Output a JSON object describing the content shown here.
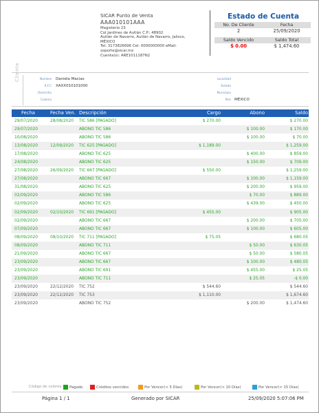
{
  "company": {
    "name": "SICAR Punto de Venta",
    "rfc": "AAA010101AAA",
    "address_lines": [
      "Magisterio 23",
      "Col.Jardines de Autlán C.P.: 48902",
      "Autlán de Navarro, Autlán de Navarro, Jalisco,",
      "MÉXICO",
      "Tel: 3173826696 Cel: 0000000000 eMail:",
      "soporte@sicar.mx",
      "Cuenta(s): ARE1011187N2"
    ]
  },
  "statement": {
    "title": "Estado de Cuenta",
    "client_no_label": "No. De Cliente",
    "client_no": "2",
    "date_label": "Fecha",
    "date": "25/09/2020",
    "due_label": "Saldo Vencido",
    "due": "$ 0.00",
    "total_label": "Saldo Total",
    "total": "$ 1,474.60"
  },
  "client": {
    "section": "Cliente",
    "name_label": "Nombre",
    "name": "Daniela Macias",
    "rfc_label": "R.F.C",
    "rfc": "XAXX010101000",
    "address_label": "Domicilio",
    "colony_label": "Colonia",
    "locality_label": "Localidad",
    "state_label": "Estado",
    "municipality_label": "Municipio",
    "country_label": "País",
    "country": "MÉXICO"
  },
  "table": {
    "headers": {
      "date": "Fecha",
      "due_date": "Fecha Ven.",
      "description": "Descripción",
      "charge": "Cargo",
      "payment": "Abono",
      "balance": "Saldo"
    },
    "rows": [
      {
        "date": "29/07/2020",
        "due": "28/08/2020",
        "desc": "TIC 586 [PAGADO]",
        "charge": "$ 270.00",
        "payment": "",
        "balance": "$ 270.00",
        "status": "green"
      },
      {
        "date": "29/07/2020",
        "due": "",
        "desc": "ABONO TIC 586",
        "charge": "",
        "payment": "$ 100.00",
        "balance": "$ 170.00",
        "status": "green"
      },
      {
        "date": "10/08/2020",
        "due": "",
        "desc": "ABONO TIC 586",
        "charge": "",
        "payment": "$ 100.00",
        "balance": "$ 70.00",
        "status": "green"
      },
      {
        "date": "13/08/2020",
        "due": "12/09/2020",
        "desc": "TIC 625 [PAGADO]",
        "charge": "$ 1,189.00",
        "payment": "",
        "balance": "$ 1,259.00",
        "status": "green"
      },
      {
        "date": "17/08/2020",
        "due": "",
        "desc": "ABONO TIC 625",
        "charge": "",
        "payment": "$ 400.00",
        "balance": "$ 859.00",
        "status": "green"
      },
      {
        "date": "24/08/2020",
        "due": "",
        "desc": "ABONO TIC 625",
        "charge": "",
        "payment": "$ 150.00",
        "balance": "$ 709.00",
        "status": "green"
      },
      {
        "date": "27/08/2020",
        "due": "26/09/2020",
        "desc": "TIC 667 [PAGADO]",
        "charge": "$ 550.00",
        "payment": "",
        "balance": "$ 1,259.00",
        "status": "green"
      },
      {
        "date": "27/08/2020",
        "due": "",
        "desc": "ABONO TIC 667",
        "charge": "",
        "payment": "$ 100.00",
        "balance": "$ 1,159.00",
        "status": "green"
      },
      {
        "date": "31/08/2020",
        "due": "",
        "desc": "ABONO TIC 625",
        "charge": "",
        "payment": "$ 200.00",
        "balance": "$ 959.00",
        "status": "green"
      },
      {
        "date": "02/09/2020",
        "due": "",
        "desc": "ABONO TIC 586",
        "charge": "",
        "payment": "$ 70.00",
        "balance": "$ 889.00",
        "status": "green"
      },
      {
        "date": "02/09/2020",
        "due": "",
        "desc": "ABONO TIC 625",
        "charge": "",
        "payment": "$ 439.00",
        "balance": "$ 450.00",
        "status": "green"
      },
      {
        "date": "02/09/2020",
        "due": "02/10/2020",
        "desc": "TIC 691 [PAGADO]",
        "charge": "$ 455.00",
        "payment": "",
        "balance": "$ 905.00",
        "status": "green"
      },
      {
        "date": "02/09/2020",
        "due": "",
        "desc": "ABONO TIC 667",
        "charge": "",
        "payment": "$ 200.00",
        "balance": "$ 705.00",
        "status": "green"
      },
      {
        "date": "07/09/2020",
        "due": "",
        "desc": "ABONO TIC 667",
        "charge": "",
        "payment": "$ 100.00",
        "balance": "$ 605.00",
        "status": "green"
      },
      {
        "date": "08/09/2020",
        "due": "08/10/2020",
        "desc": "TIC 711 [PAGADO]",
        "charge": "$ 75.05",
        "payment": "",
        "balance": "$ 680.05",
        "status": "green"
      },
      {
        "date": "08/09/2020",
        "due": "",
        "desc": "ABONO TIC 711",
        "charge": "",
        "payment": "$ 50.00",
        "balance": "$ 630.05",
        "status": "green"
      },
      {
        "date": "21/09/2020",
        "due": "",
        "desc": "ABONO TIC 667",
        "charge": "",
        "payment": "$ 50.00",
        "balance": "$ 580.05",
        "status": "green"
      },
      {
        "date": "23/09/2020",
        "due": "",
        "desc": "ABONO TIC 667",
        "charge": "",
        "payment": "$ 100.00",
        "balance": "$ 480.05",
        "status": "green"
      },
      {
        "date": "23/09/2020",
        "due": "",
        "desc": "ABONO TIC 691",
        "charge": "",
        "payment": "$ 455.00",
        "balance": "$ 25.05",
        "status": "green"
      },
      {
        "date": "23/09/2020",
        "due": "",
        "desc": "ABONO TIC 711",
        "charge": "",
        "payment": "$ 25.05",
        "balance": "-$ 0.00",
        "status": "green"
      },
      {
        "date": "23/09/2020",
        "due": "22/12/2020",
        "desc": "TIC 752",
        "charge": "$ 544.60",
        "payment": "",
        "balance": "$ 544.60",
        "status": "gray"
      },
      {
        "date": "23/09/2020",
        "due": "22/12/2020",
        "desc": "TIC 753",
        "charge": "$ 1,110.00",
        "payment": "",
        "balance": "$ 1,674.60",
        "status": "gray"
      },
      {
        "date": "23/09/2020",
        "due": "",
        "desc": "ABONO TIC 752",
        "charge": "",
        "payment": "$ 200.00",
        "balance": "$ 1,474.60",
        "status": "gray"
      }
    ]
  },
  "legend": {
    "title": "Código de colores:",
    "items": [
      {
        "label": "Pagado",
        "color": "#1ea31e"
      },
      {
        "label": "Créditos vencidos",
        "color": "#e02020"
      },
      {
        "label": "Por Vencer(< 5 Días)",
        "color": "#f39a1e"
      },
      {
        "label": "Por Vencer(< 10 Días)",
        "color": "#b9b91a"
      },
      {
        "label": "Por Vencer(< 15 Días)",
        "color": "#2aa0d8"
      }
    ]
  },
  "footer": {
    "page": "Página 1 / 1",
    "generated": "Generado por SICAR",
    "timestamp": "25/09/2020 5:07:06 PM"
  }
}
